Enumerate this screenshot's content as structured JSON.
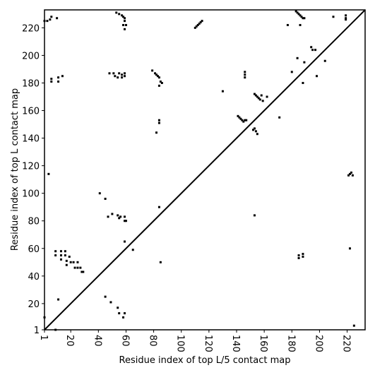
{
  "chart_data": {
    "type": "scatter",
    "xlabel": "Residue index of top L/5 contact map",
    "ylabel": "Residue index of top L contact map",
    "color": "#000000",
    "diagonal": true,
    "xlim": [
      1,
      233
    ],
    "ylim": [
      1,
      233
    ],
    "xticks": [
      1,
      20,
      40,
      60,
      80,
      100,
      120,
      140,
      160,
      180,
      200,
      220
    ],
    "yticks": [
      1,
      20,
      40,
      60,
      80,
      100,
      120,
      140,
      160,
      180,
      200,
      220
    ],
    "x": [
      1,
      3,
      5,
      6,
      10,
      4,
      6,
      6,
      11,
      11,
      14,
      9,
      9,
      13,
      13,
      13,
      16,
      16,
      17,
      17,
      19,
      20,
      22,
      23,
      25,
      25,
      27,
      28,
      29,
      41,
      45,
      47,
      50,
      54,
      55,
      56,
      59,
      59,
      60,
      59,
      65,
      48,
      51,
      52,
      54,
      55,
      57,
      57,
      59,
      59,
      53,
      55,
      57,
      58,
      59,
      59,
      58,
      60,
      59,
      79,
      81,
      82,
      83,
      84,
      85,
      86,
      84,
      82,
      84,
      84,
      84,
      85,
      110,
      111,
      112,
      113,
      114,
      115,
      130,
      141,
      142,
      143,
      144,
      145,
      146,
      147,
      146,
      146,
      146,
      152,
      153,
      154,
      155,
      153,
      154,
      155,
      156,
      157,
      158,
      159,
      162,
      171,
      177,
      180,
      183,
      184,
      185,
      186,
      187,
      188,
      189,
      184,
      186,
      189,
      188,
      194,
      195,
      197,
      198,
      204,
      210,
      219,
      219,
      219,
      221,
      222,
      223,
      224,
      222,
      1,
      9,
      11,
      45,
      49,
      54,
      55,
      58,
      59,
      153,
      185,
      185,
      188,
      188,
      225
    ],
    "y": [
      225,
      225,
      226,
      228,
      227,
      114,
      183,
      181,
      184,
      181,
      185,
      58,
      55,
      58,
      55,
      52,
      58,
      55,
      51,
      48,
      54,
      50,
      50,
      46,
      50,
      46,
      46,
      43,
      43,
      100,
      96,
      83,
      85,
      84,
      82,
      83,
      83,
      80,
      80,
      65,
      59,
      187,
      187,
      185,
      184,
      187,
      186,
      184,
      187,
      185,
      231,
      230,
      229,
      228,
      227,
      225,
      222,
      222,
      219,
      189,
      187,
      186,
      185,
      184,
      181,
      180,
      178,
      144,
      153,
      151,
      90,
      50,
      220,
      221,
      222,
      223,
      224,
      225,
      174,
      156,
      155,
      154,
      153,
      152,
      153,
      153,
      188,
      186,
      184,
      146,
      147,
      145,
      143,
      172,
      171,
      170,
      169,
      168,
      171,
      167,
      170,
      155,
      222,
      188,
      232,
      231,
      230,
      229,
      228,
      227,
      227,
      198,
      222,
      195,
      180,
      206,
      204,
      204,
      185,
      196,
      228,
      229,
      227,
      226,
      113,
      114,
      115,
      113,
      60,
      10,
      1,
      23,
      25,
      21,
      17,
      13,
      10,
      13,
      84,
      55,
      53,
      54,
      56,
      4
    ]
  }
}
